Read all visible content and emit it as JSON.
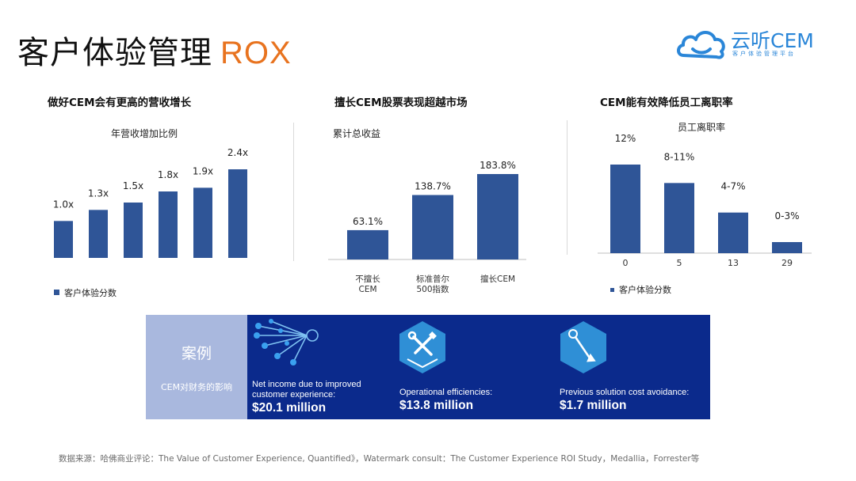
{
  "header": {
    "title_cn": "客户体验管理",
    "title_rox": "ROX",
    "logo_text": "云听CEM",
    "logo_sub": "客户体验管理平台"
  },
  "chart_data": [
    {
      "type": "bar",
      "title": "做好CEM会有更高的营收增长",
      "subtitle": "年营收增加比例",
      "categories": [
        "",
        "",
        "",
        "",
        "",
        ""
      ],
      "series": [
        {
          "name": "客户体验分数",
          "values": [
            1.0,
            1.3,
            1.5,
            1.8,
            1.9,
            2.4
          ]
        }
      ],
      "labels": [
        "1.0x",
        "1.3x",
        "1.5x",
        "1.8x",
        "1.9x",
        "2.4x"
      ],
      "ylim": [
        0,
        2.4
      ],
      "legend": "bottom-left",
      "color": "#2f5597"
    },
    {
      "type": "bar",
      "title": "擅长CEM股票表现超越市场",
      "subtitle": "累计总收益",
      "categories": [
        "不擅长\nCEM",
        "标准普尔\n500指数",
        "擅长CEM"
      ],
      "series": [
        {
          "values": [
            63.1,
            138.7,
            183.8
          ]
        }
      ],
      "labels": [
        "63.1%",
        "138.7%",
        "183.8%"
      ],
      "ylim": [
        0,
        183.8
      ],
      "color": "#2f5597"
    },
    {
      "type": "bar",
      "title": "CEM能有效降低员工离职率",
      "subtitle": "员工离职率",
      "categories": [
        "0",
        "5",
        "13",
        "29"
      ],
      "series": [
        {
          "name": "客户体验分数",
          "values": [
            12,
            9.5,
            5.5,
            1.5
          ]
        }
      ],
      "labels": [
        "12%",
        "8-11%",
        "4-7%",
        "0-3%"
      ],
      "ylim": [
        0,
        12
      ],
      "legend": "bottom-left",
      "color": "#2f5597"
    }
  ],
  "case": {
    "title": "案例",
    "subtitle": "CEM对财务的影响",
    "metrics": [
      {
        "label": "Net income due to improved customer experience:",
        "value": "$20.1 million",
        "icon": "network-nodes-icon"
      },
      {
        "label": "Operational efficiencies:",
        "value": "$13.8 million",
        "icon": "tools-hexagon-icon"
      },
      {
        "label": "Previous solution cost avoidance:",
        "value": "$1.7 million",
        "icon": "arrow-down-hexagon-icon"
      }
    ]
  },
  "source": "数据来源：哈佛商业评论：The Value of Customer Experience, Quantified》，Watermark consult：The Customer Experience ROI Study，Medallia，Forrester等",
  "colors": {
    "bar": "#2f5597",
    "accent": "#e8731f",
    "case_dark": "#0b2a8c",
    "case_light": "#a9b8de",
    "icon_hex": "#2f8fd6"
  }
}
